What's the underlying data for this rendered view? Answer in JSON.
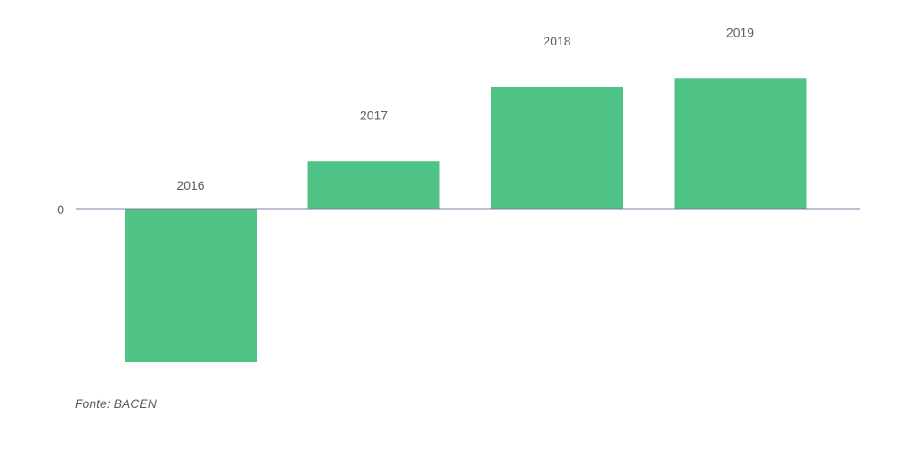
{
  "chart_data": {
    "type": "bar",
    "categories": [
      "2016",
      "2017",
      "2018",
      "2019"
    ],
    "values": [
      -3.2,
      1.0,
      2.55,
      2.73
    ],
    "ylim": [
      -3.5,
      3.2
    ],
    "y_ticks": [
      "0"
    ],
    "bar_color": "#4fc286",
    "axis_color": "#7b7fa6",
    "grid": false,
    "legend": "none",
    "category_labels_position": "above-bar"
  },
  "source": "Fonte: BACEN"
}
